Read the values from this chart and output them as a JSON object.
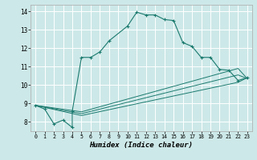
{
  "xlabel": "Humidex (Indice chaleur)",
  "bg_color": "#cde8e8",
  "grid_color": "#ffffff",
  "line_color": "#1a7a6e",
  "series0": {
    "x": [
      0,
      1,
      2,
      3,
      4,
      4,
      5,
      6,
      7,
      8,
      10,
      11,
      12,
      13,
      14,
      15,
      16,
      17,
      18,
      19,
      20,
      21,
      22,
      23
    ],
    "y": [
      8.9,
      8.7,
      7.9,
      8.1,
      7.7,
      8.6,
      11.5,
      11.5,
      11.8,
      12.4,
      13.2,
      13.95,
      13.8,
      13.8,
      13.55,
      13.5,
      12.3,
      12.1,
      11.5,
      11.5,
      10.85,
      10.8,
      10.25,
      10.4
    ]
  },
  "series1": {
    "x": [
      0,
      5,
      22,
      23
    ],
    "y": [
      8.9,
      8.55,
      10.9,
      10.35
    ]
  },
  "series2": {
    "x": [
      0,
      5,
      22,
      23
    ],
    "y": [
      8.9,
      8.45,
      10.55,
      10.35
    ]
  },
  "series3": {
    "x": [
      0,
      5,
      22,
      23
    ],
    "y": [
      8.9,
      8.35,
      10.15,
      10.4
    ]
  },
  "ylim": [
    7.5,
    14.35
  ],
  "xlim": [
    -0.5,
    23.5
  ],
  "yticks": [
    8,
    9,
    10,
    11,
    12,
    13,
    14
  ],
  "xticks": [
    0,
    1,
    2,
    3,
    4,
    5,
    6,
    7,
    8,
    9,
    10,
    11,
    12,
    13,
    14,
    15,
    16,
    17,
    18,
    19,
    20,
    21,
    22,
    23
  ]
}
